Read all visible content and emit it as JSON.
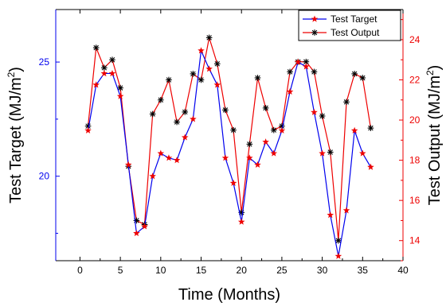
{
  "chart_data": {
    "type": "line",
    "xlabel": "Time (Months)",
    "ylabel_left": "Test Target (MJ/m²)",
    "ylabel_left_parts": {
      "main": "Test Target (MJ/m",
      "sup": "2",
      "end": ")"
    },
    "ylabel_right": "Test Output (MJ/m²)",
    "ylabel_right_parts": {
      "main": "Test Output (MJ/m",
      "sup": "2",
      "end": ")"
    },
    "xlim": [
      -3,
      40
    ],
    "ylim_left": [
      16.3,
      27.3
    ],
    "ylim_right": [
      13,
      25.5
    ],
    "x_ticks": [
      "0",
      "5",
      "10",
      "15",
      "20",
      "25",
      "30",
      "35",
      "40"
    ],
    "y_left_ticks": [
      "20",
      "25"
    ],
    "y_right_ticks": [
      "14",
      "16",
      "18",
      "20",
      "22",
      "24"
    ],
    "legend": {
      "placement": "top-right",
      "entries": [
        "Test Target",
        "Test Output"
      ]
    },
    "colors": {
      "target": "#0000ee",
      "output": "#ee0000",
      "right_axis": "#ee0000",
      "left_axis": "#000000"
    },
    "x": [
      1,
      2,
      3,
      4,
      5,
      6,
      7,
      8,
      9,
      10,
      11,
      12,
      13,
      14,
      15,
      16,
      17,
      18,
      19,
      20,
      21,
      22,
      23,
      24,
      25,
      26,
      27,
      28,
      29,
      30,
      31,
      32,
      33,
      34,
      35,
      36
    ],
    "series": [
      {
        "name": "Test Target",
        "axis": "left",
        "line_color": "#0000ee",
        "marker": "star",
        "marker_color": "#ee0000",
        "values": [
          22.0,
          24.0,
          24.5,
          24.5,
          23.5,
          20.5,
          17.5,
          17.8,
          20.0,
          21.0,
          20.8,
          20.7,
          21.7,
          22.5,
          25.5,
          24.7,
          24.0,
          20.8,
          19.7,
          18.0,
          20.8,
          20.5,
          21.5,
          21.0,
          22.0,
          23.7,
          25.0,
          24.8,
          22.8,
          21.0,
          18.3,
          16.5,
          18.5,
          22.0,
          21.0,
          20.4
        ]
      },
      {
        "name": "Test Output",
        "axis": "right",
        "line_color": "#ee0000",
        "marker": "asterisk",
        "marker_color": "#000000",
        "values": [
          19.7,
          23.6,
          22.6,
          23.0,
          21.6,
          17.7,
          15.0,
          14.8,
          20.3,
          21.0,
          22.0,
          19.9,
          20.4,
          22.3,
          22.0,
          24.1,
          22.8,
          20.5,
          19.5,
          15.4,
          18.8,
          22.1,
          20.6,
          19.5,
          19.7,
          22.4,
          22.9,
          22.9,
          22.4,
          20.2,
          18.4,
          14.0,
          20.9,
          22.3,
          22.1,
          19.6
        ]
      }
    ]
  }
}
